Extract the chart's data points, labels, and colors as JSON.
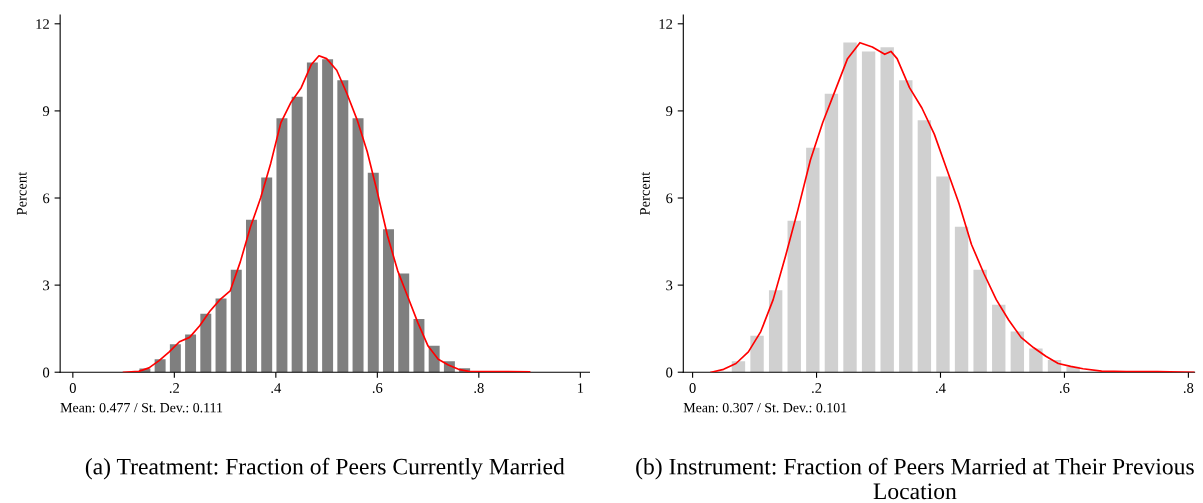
{
  "chart_data": [
    {
      "type": "histogram",
      "title": "(a) Treatment: Fraction of Peers Currently Married",
      "ylabel": "Percent",
      "annotations": [
        "Mean: 0.477 / St. Dev.: 0.111"
      ],
      "bins": [
        0.127,
        0.157,
        0.187,
        0.217,
        0.247,
        0.277,
        0.307,
        0.337,
        0.367,
        0.397,
        0.427,
        0.457,
        0.487,
        0.517,
        0.547,
        0.577,
        0.607,
        0.637,
        0.667,
        0.697,
        0.727,
        0.757,
        0.787,
        0.817,
        0.847,
        0.877,
        0.907
      ],
      "values": [
        0.13,
        0.45,
        0.96,
        1.3,
        2.01,
        2.54,
        3.53,
        5.25,
        6.71,
        8.75,
        9.49,
        10.67,
        10.78,
        10.06,
        8.75,
        6.87,
        4.92,
        3.4,
        1.83,
        0.91,
        0.38,
        0.14,
        0.03,
        0.02,
        0.02,
        null
      ],
      "color": "#7f7f7f",
      "series": [
        {
          "type": "line",
          "color": "#ff0000",
          "x": [
            0.1,
            0.13,
            0.15,
            0.17,
            0.19,
            0.21,
            0.23,
            0.25,
            0.27,
            0.29,
            0.31,
            0.33,
            0.35,
            0.37,
            0.39,
            0.41,
            0.43,
            0.45,
            0.47,
            0.485,
            0.5,
            0.52,
            0.54,
            0.56,
            0.58,
            0.6,
            0.62,
            0.64,
            0.66,
            0.68,
            0.7,
            0.72,
            0.74,
            0.76,
            0.78,
            0.8,
            0.85,
            0.9
          ],
          "values": [
            0,
            0.03,
            0.15,
            0.4,
            0.7,
            1.05,
            1.2,
            1.6,
            2.1,
            2.5,
            2.8,
            3.8,
            5.0,
            6.0,
            7.2,
            8.6,
            9.3,
            9.8,
            10.6,
            10.9,
            10.8,
            10.4,
            9.6,
            8.7,
            7.6,
            6.2,
            4.7,
            3.5,
            2.6,
            1.7,
            0.9,
            0.45,
            0.25,
            0.1,
            0.03,
            0.02,
            0.02,
            0.01
          ]
        }
      ],
      "xlim": [
        -0.025,
        1.018
      ],
      "ylim": [
        0,
        12.3
      ],
      "xticks": [
        0,
        {
          "value": 0.2,
          "label": ".2"
        },
        {
          "value": 0.4,
          "label": ".4"
        },
        {
          "value": 0.6,
          "label": ".6"
        },
        {
          "value": 0.8,
          "label": ".8"
        },
        1
      ],
      "yticks": [
        0,
        3,
        6,
        9,
        12
      ],
      "grid": false,
      "legend": false
    },
    {
      "type": "histogram",
      "title": "(b) Instrument: Fraction of Peers Married at Their Previous Location",
      "ylabel": "Percent",
      "annotations": [
        "Mean: 0.307 / St. Dev.: 0.101"
      ],
      "bins": [
        0.059,
        0.089,
        0.119,
        0.149,
        0.179,
        0.209,
        0.239,
        0.269,
        0.299,
        0.329,
        0.359,
        0.389,
        0.419,
        0.449,
        0.479,
        0.509,
        0.539,
        0.569,
        0.599,
        0.629
      ],
      "values": [
        0.38,
        1.26,
        2.82,
        5.22,
        7.73,
        9.59,
        11.36,
        11.05,
        11.19,
        10.06,
        8.68,
        6.74,
        5.01,
        3.53,
        2.32,
        1.4,
        0.82,
        0.42,
        0.19
      ],
      "color": "#d0d0d0",
      "series": [
        {
          "type": "line",
          "color": "#ff0000",
          "x": [
            0.03,
            0.05,
            0.07,
            0.09,
            0.11,
            0.13,
            0.15,
            0.17,
            0.19,
            0.21,
            0.23,
            0.25,
            0.27,
            0.29,
            0.31,
            0.32,
            0.33,
            0.35,
            0.37,
            0.39,
            0.41,
            0.43,
            0.45,
            0.47,
            0.49,
            0.51,
            0.53,
            0.55,
            0.57,
            0.59,
            0.61,
            0.63,
            0.66,
            0.7,
            0.75,
            0.81
          ],
          "values": [
            0,
            0.1,
            0.3,
            0.7,
            1.4,
            2.5,
            4.0,
            5.6,
            7.3,
            8.6,
            9.7,
            10.8,
            11.35,
            11.2,
            10.95,
            11.05,
            10.8,
            9.8,
            9.1,
            8.2,
            7.0,
            5.8,
            4.4,
            3.4,
            2.5,
            1.8,
            1.2,
            0.85,
            0.55,
            0.3,
            0.2,
            0.12,
            0.04,
            0.02,
            0.02,
            0
          ]
        }
      ],
      "xlim": [
        -0.015,
        0.81
      ],
      "ylim": [
        0,
        12.3
      ],
      "xticks": [
        0,
        {
          "value": 0.2,
          "label": ".2"
        },
        {
          "value": 0.4,
          "label": ".4"
        },
        {
          "value": 0.6,
          "label": ".6"
        },
        {
          "value": 0.8,
          "label": ".8"
        }
      ],
      "yticks": [
        0,
        3,
        6,
        9,
        12
      ],
      "grid": false,
      "legend": false
    }
  ]
}
